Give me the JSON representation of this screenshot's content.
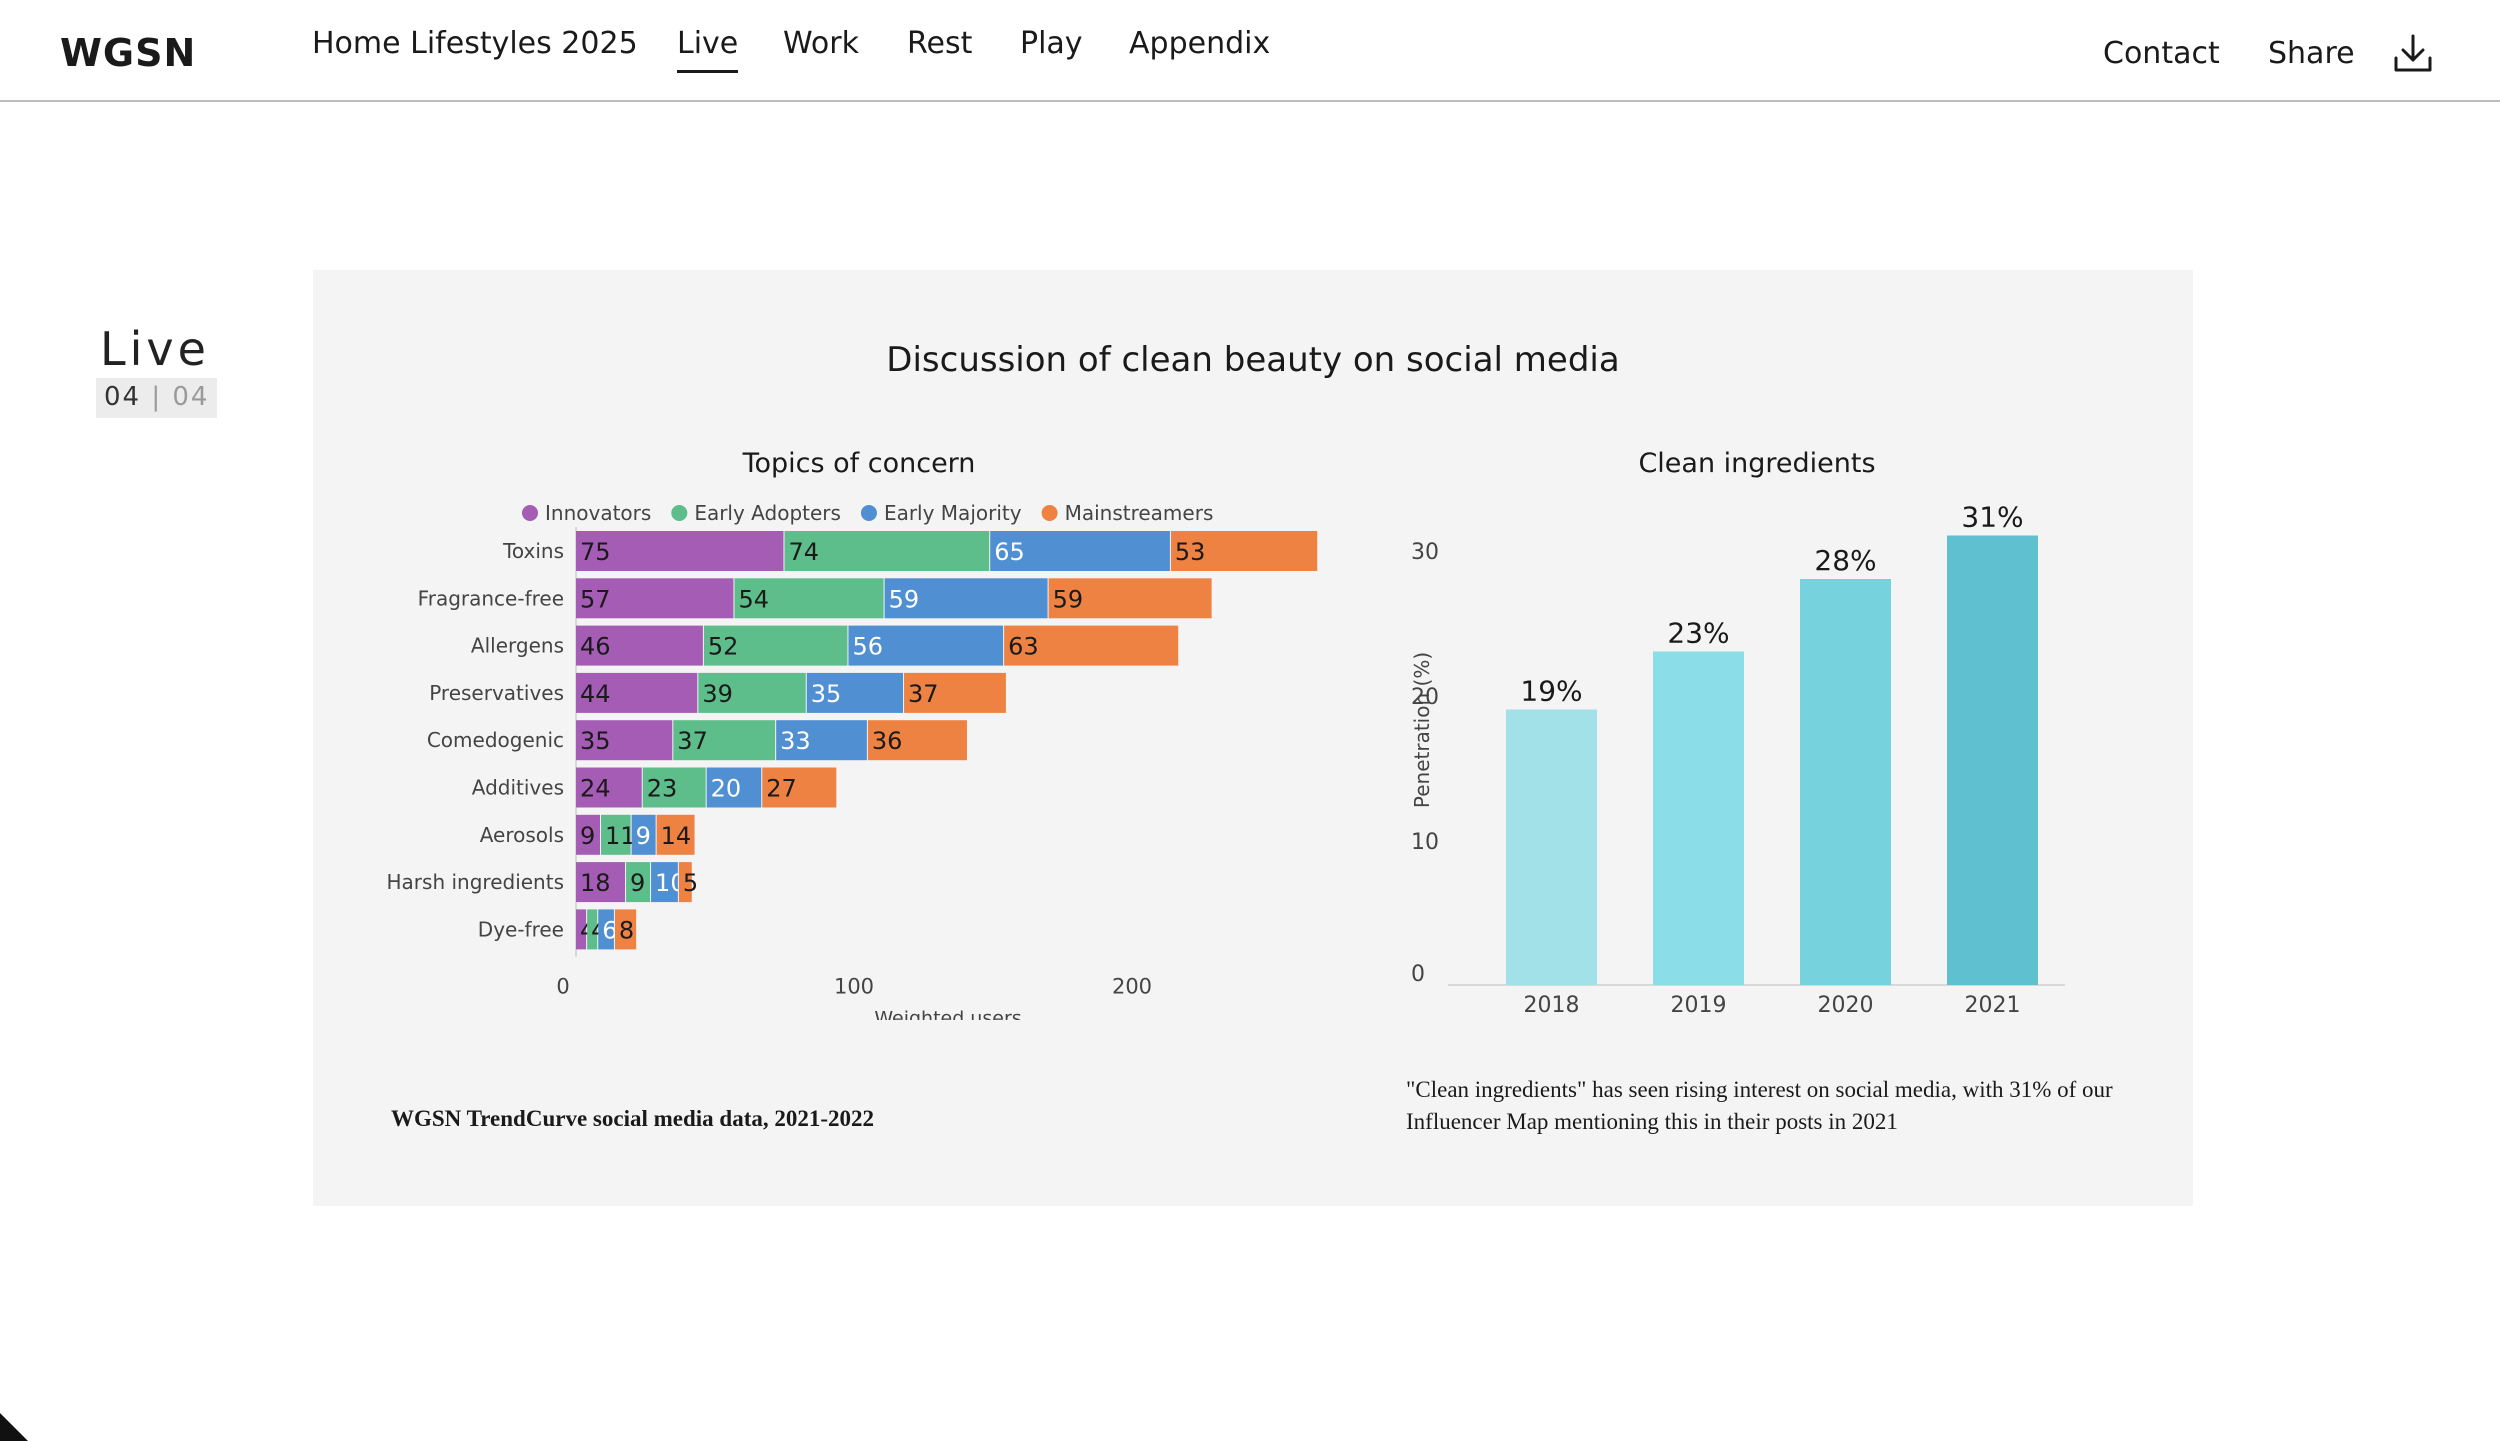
{
  "header": {
    "logo_text": "WGSN",
    "report_title": "Home Lifestyles 2025",
    "tabs": [
      {
        "label": "Live",
        "active": true
      },
      {
        "label": "Work",
        "active": false
      },
      {
        "label": "Rest",
        "active": false
      },
      {
        "label": "Play",
        "active": false
      },
      {
        "label": "Appendix",
        "active": false
      }
    ],
    "contact_label": "Contact",
    "share_label": "Share",
    "download_icon": "download-icon"
  },
  "section": {
    "name": "Live",
    "current": "04",
    "separator": "|",
    "total": "04"
  },
  "card": {
    "title": "Discussion of clean beauty on social media",
    "source": "WGSN TrendCurve social media data, 2021-2022",
    "note": "\"Clean ingredients\" has seen rising interest on social media, with 31% of our Influencer Map mentioning this in their posts in 2021"
  },
  "chart_data": [
    {
      "type": "bar",
      "orientation": "horizontal",
      "stacked": true,
      "title": "Topics of concern",
      "xlabel": "Weighted users",
      "ylabel": "",
      "xlim": [
        0,
        270
      ],
      "x_ticks": [
        "0",
        "100",
        "200"
      ],
      "legend_position": "top",
      "categories": [
        "Toxins",
        "Fragrance-free",
        "Allergens",
        "Preservatives",
        "Comedogenic",
        "Additives",
        "Aerosols",
        "Harsh ingredients",
        "Dye-free"
      ],
      "series": [
        {
          "name": "Innovators",
          "color": "#a55cb5",
          "values": [
            75,
            57,
            46,
            44,
            35,
            24,
            9,
            18,
            4
          ]
        },
        {
          "name": "Early Adopters",
          "color": "#5dbd8b",
          "values": [
            74,
            54,
            52,
            39,
            37,
            23,
            11,
            9,
            4
          ]
        },
        {
          "name": "Early Majority",
          "color": "#4f8fd2",
          "values": [
            65,
            59,
            56,
            35,
            33,
            20,
            9,
            10,
            6
          ]
        },
        {
          "name": "Mainstreamers",
          "color": "#ee8243",
          "values": [
            53,
            59,
            63,
            37,
            36,
            27,
            14,
            5,
            8
          ]
        }
      ]
    },
    {
      "type": "bar",
      "title": "Clean ingredients",
      "xlabel": "",
      "ylabel": "Penetration (%)",
      "ylim": [
        0,
        31
      ],
      "y_ticks": [
        "0",
        "10",
        "20",
        "30"
      ],
      "grid": false,
      "categories": [
        "2018",
        "2019",
        "2020",
        "2021"
      ],
      "values": [
        19,
        23,
        28,
        31
      ],
      "data_labels": [
        "19%",
        "23%",
        "28%",
        "31%"
      ],
      "colors": [
        "#a2e1e8",
        "#8bdde8",
        "#76d3de",
        "#5fc0cf"
      ]
    }
  ]
}
